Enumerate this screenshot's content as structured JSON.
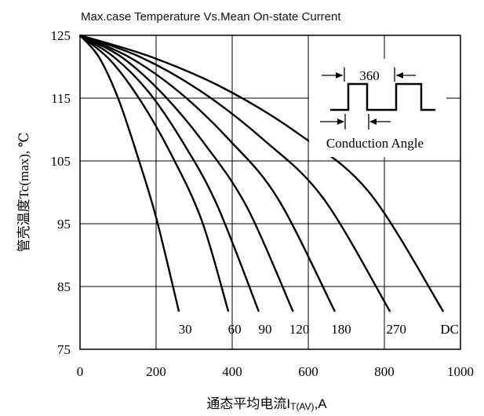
{
  "chart_data": {
    "type": "line",
    "title": "Max.case Temperature Vs.Mean On-state Current",
    "xlabel": "通态平均电流I",
    "xlabel_sub": "T(AV)",
    "xlabel_unit": ",A",
    "ylabel": "管壳温度Tc(max), ℃",
    "xlim": [
      0,
      1000
    ],
    "ylim": [
      75,
      125
    ],
    "x_ticks": [
      0,
      200,
      400,
      600,
      800,
      1000
    ],
    "y_ticks": [
      75,
      85,
      95,
      105,
      115,
      125
    ],
    "grid": true,
    "series": [
      {
        "name": "30",
        "x": [
          0,
          50,
          100,
          150,
          200,
          260
        ],
        "y": [
          125,
          121.5,
          115,
          106,
          96,
          81
        ]
      },
      {
        "name": "60",
        "x": [
          0,
          80,
          160,
          240,
          320,
          390
        ],
        "y": [
          125,
          121,
          114.5,
          106,
          95.5,
          81
        ]
      },
      {
        "name": "90",
        "x": [
          0,
          90,
          180,
          270,
          360,
          470
        ],
        "y": [
          125,
          121.5,
          116,
          108,
          98,
          81
        ]
      },
      {
        "name": "120",
        "x": [
          0,
          110,
          220,
          330,
          440,
          560
        ],
        "y": [
          125,
          121.5,
          115.5,
          107.5,
          97.5,
          81
        ]
      },
      {
        "name": "180",
        "x": [
          0,
          130,
          260,
          390,
          520,
          670
        ],
        "y": [
          125,
          121.5,
          116,
          108.5,
          99,
          81
        ]
      },
      {
        "name": "270",
        "x": [
          0,
          160,
          320,
          480,
          640,
          815
        ],
        "y": [
          125,
          121.5,
          116,
          108.5,
          99,
          81
        ]
      },
      {
        "name": "DC",
        "x": [
          0,
          190,
          380,
          570,
          760,
          955
        ],
        "y": [
          125,
          121.5,
          116.5,
          109.5,
          100,
          81
        ]
      }
    ],
    "annotations": {
      "period_label": "360",
      "inset_label": "Conduction Angle"
    }
  }
}
